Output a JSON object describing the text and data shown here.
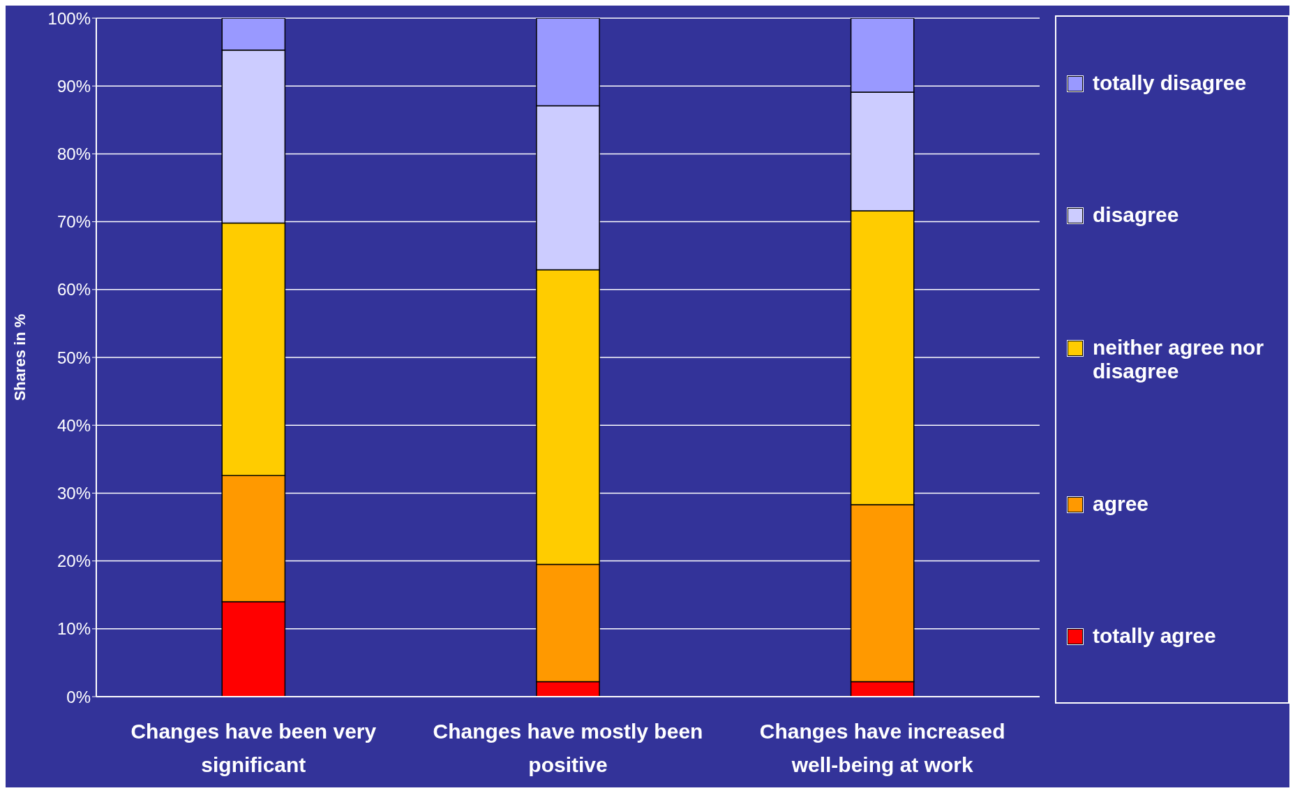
{
  "chart_data": {
    "type": "bar",
    "stacked": true,
    "ylabel": "Shares in %",
    "categories": [
      "Changes have been very significant",
      "Changes have mostly been positive",
      "Changes have increased well-being at work"
    ],
    "series": [
      {
        "name": "totally agree",
        "color": "#ff0000",
        "values": [
          14,
          2.2,
          2.2
        ]
      },
      {
        "name": "agree",
        "color": "#ff9900",
        "values": [
          18.6,
          17.3,
          26.1
        ]
      },
      {
        "name": "neither agree nor disagree",
        "color": "#ffcc00",
        "values": [
          37.2,
          43.4,
          43.3
        ]
      },
      {
        "name": "disagree",
        "color": "#ccccff",
        "values": [
          25.5,
          24.2,
          17.5
        ]
      },
      {
        "name": "totally disagree",
        "color": "#9999ff",
        "values": [
          4.7,
          12.9,
          10.9
        ]
      }
    ],
    "ylim": [
      0,
      100
    ],
    "yticks": [
      {
        "value": 0,
        "label": "0%"
      },
      {
        "value": 10,
        "label": "10%"
      },
      {
        "value": 20,
        "label": "20%"
      },
      {
        "value": 30,
        "label": "30%"
      },
      {
        "value": 40,
        "label": "40%"
      },
      {
        "value": 50,
        "label": "50%"
      },
      {
        "value": 60,
        "label": "60%"
      },
      {
        "value": 70,
        "label": "70%"
      },
      {
        "value": 80,
        "label": "80%"
      },
      {
        "value": 90,
        "label": "90%"
      },
      {
        "value": 100,
        "label": "100%"
      }
    ],
    "grid": "y",
    "legend": "right"
  }
}
